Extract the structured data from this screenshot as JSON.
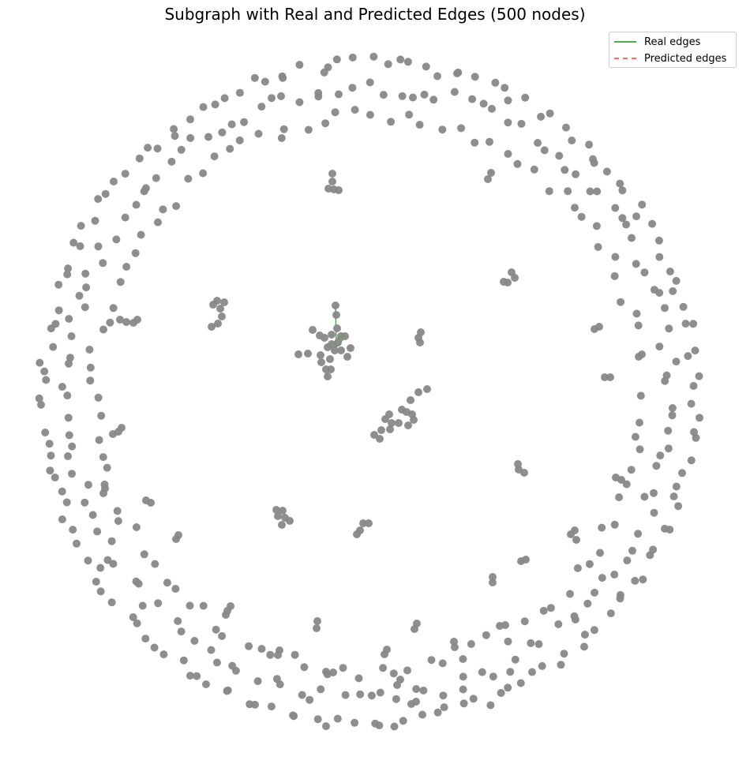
{
  "figure": {
    "title": "Subgraph with Real and Predicted Edges (500 nodes)"
  },
  "legend": {
    "items": [
      {
        "label": "Real edges",
        "color": "#4caf50",
        "style": "solid"
      },
      {
        "label": "Predicted edges",
        "color": "#ff6b6b",
        "style": "dashed"
      }
    ]
  },
  "colors": {
    "node": "#888888",
    "real_edge": "#4caf50",
    "predicted_edge": "#ff6b6b"
  },
  "graph": {
    "node_count": 500,
    "real_edge_count": 4,
    "predicted_edge_count": 0
  }
}
